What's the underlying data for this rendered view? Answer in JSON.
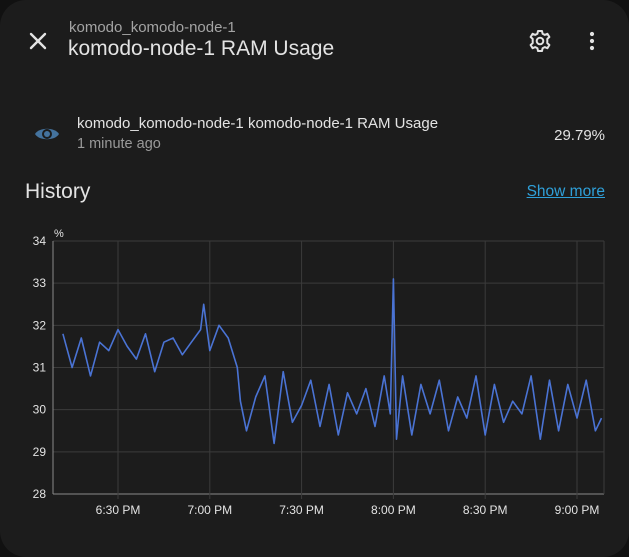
{
  "header": {
    "subtitle": "komodo_komodo-node-1",
    "title": "komodo-node-1 RAM Usage"
  },
  "icons": {
    "close": "close-icon",
    "settings": "gear-icon",
    "more": "more-vertical-icon",
    "entity": "eye-icon"
  },
  "entity": {
    "name": "komodo_komodo-node-1 komodo-node-1 RAM Usage",
    "last_changed": "1 minute ago",
    "state": "29.79%"
  },
  "history": {
    "title": "History",
    "show_more": "Show more"
  },
  "colors": {
    "line": "#4a73d4",
    "accent": "#2fa0d9",
    "background": "#1c1c1c"
  },
  "chart_data": {
    "type": "line",
    "unit": "%",
    "ylim": [
      28,
      34
    ],
    "y_ticks": [
      "28",
      "29",
      "30",
      "31",
      "32",
      "33",
      "34"
    ],
    "x_ticks": [
      "6:30 PM",
      "7:00 PM",
      "7:30 PM",
      "8:00 PM",
      "8:30 PM",
      "9:00 PM"
    ],
    "grid": true,
    "series": [
      {
        "x": [
          "6:12 PM",
          "6:15 PM",
          "6:18 PM",
          "6:21 PM",
          "6:24 PM",
          "6:27 PM",
          "6:30 PM",
          "6:33 PM",
          "6:36 PM",
          "6:39 PM",
          "6:42 PM",
          "6:45 PM",
          "6:48 PM",
          "6:51 PM",
          "6:54 PM",
          "6:57 PM",
          "6:58 PM",
          "7:00 PM",
          "7:03 PM",
          "7:06 PM",
          "7:09 PM",
          "7:10 PM",
          "7:12 PM",
          "7:15 PM",
          "7:18 PM",
          "7:21 PM",
          "7:24 PM",
          "7:27 PM",
          "7:30 PM",
          "7:33 PM",
          "7:36 PM",
          "7:39 PM",
          "7:42 PM",
          "7:45 PM",
          "7:48 PM",
          "7:51 PM",
          "7:54 PM",
          "7:57 PM",
          "7:59 PM",
          "8:00 PM",
          "8:01 PM",
          "8:03 PM",
          "8:06 PM",
          "8:09 PM",
          "8:12 PM",
          "8:15 PM",
          "8:18 PM",
          "8:21 PM",
          "8:24 PM",
          "8:27 PM",
          "8:30 PM",
          "8:33 PM",
          "8:36 PM",
          "8:39 PM",
          "8:42 PM",
          "8:45 PM",
          "8:48 PM",
          "8:51 PM",
          "8:54 PM",
          "8:57 PM",
          "9:00 PM",
          "9:03 PM",
          "9:06 PM",
          "9:08 PM"
        ],
        "values": [
          31.8,
          31.0,
          31.7,
          30.8,
          31.6,
          31.4,
          31.9,
          31.5,
          31.2,
          31.8,
          30.9,
          31.6,
          31.7,
          31.3,
          31.6,
          31.9,
          32.5,
          31.4,
          32.0,
          31.7,
          31.0,
          30.2,
          29.5,
          30.3,
          30.8,
          29.2,
          30.9,
          29.7,
          30.1,
          30.7,
          29.6,
          30.6,
          29.4,
          30.4,
          29.9,
          30.5,
          29.6,
          30.8,
          29.9,
          33.1,
          29.3,
          30.8,
          29.4,
          30.6,
          29.9,
          30.7,
          29.5,
          30.3,
          29.8,
          30.8,
          29.4,
          30.6,
          29.7,
          30.2,
          29.9,
          30.8,
          29.3,
          30.7,
          29.5,
          30.6,
          29.8,
          30.7,
          29.5,
          29.8
        ]
      }
    ]
  }
}
